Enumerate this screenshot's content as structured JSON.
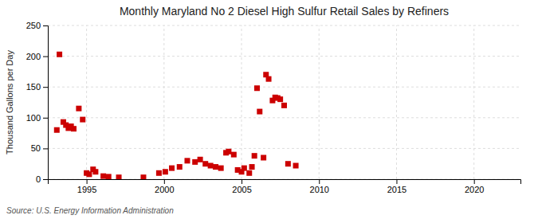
{
  "chart_data": {
    "type": "scatter",
    "title": "Monthly Maryland No 2 Diesel High Sulfur Retail Sales by Refiners",
    "ylabel": "Thousand Gallons per Day",
    "source": "Source: U.S. Energy Information Administration",
    "color": "#cc0000",
    "marker": "square",
    "grid": true,
    "xlim": [
      1992.5,
      2023
    ],
    "ylim": [
      0,
      250
    ],
    "xticks": [
      1995,
      2000,
      2005,
      2010,
      2015,
      2020
    ],
    "yticks": [
      0,
      50,
      100,
      150,
      200,
      250
    ],
    "x": [
      1993.08,
      1993.25,
      1993.5,
      1993.67,
      1993.83,
      1994.0,
      1994.17,
      1994.5,
      1994.75,
      1995.0,
      1995.17,
      1995.42,
      1995.58,
      1996.08,
      1996.42,
      1997.08,
      1998.67,
      1999.67,
      2000.08,
      2000.5,
      2001.0,
      2001.5,
      2002.0,
      2002.33,
      2002.67,
      2003.0,
      2003.33,
      2003.67,
      2004.0,
      2004.17,
      2004.5,
      2004.75,
      2005.0,
      2005.17,
      2005.5,
      2005.67,
      2005.83,
      2006.0,
      2006.17,
      2006.42,
      2006.58,
      2006.75,
      2007.0,
      2007.17,
      2007.33,
      2007.5,
      2007.75,
      2008.0,
      2008.5
    ],
    "values": [
      80,
      203,
      93,
      88,
      83,
      86,
      82,
      115,
      97,
      10,
      8,
      16,
      12,
      5,
      4,
      3,
      3,
      10,
      12,
      18,
      20,
      30,
      28,
      32,
      25,
      22,
      20,
      18,
      43,
      45,
      40,
      15,
      12,
      18,
      10,
      20,
      38,
      148,
      110,
      35,
      170,
      163,
      128,
      133,
      132,
      130,
      120,
      25,
      22
    ]
  }
}
